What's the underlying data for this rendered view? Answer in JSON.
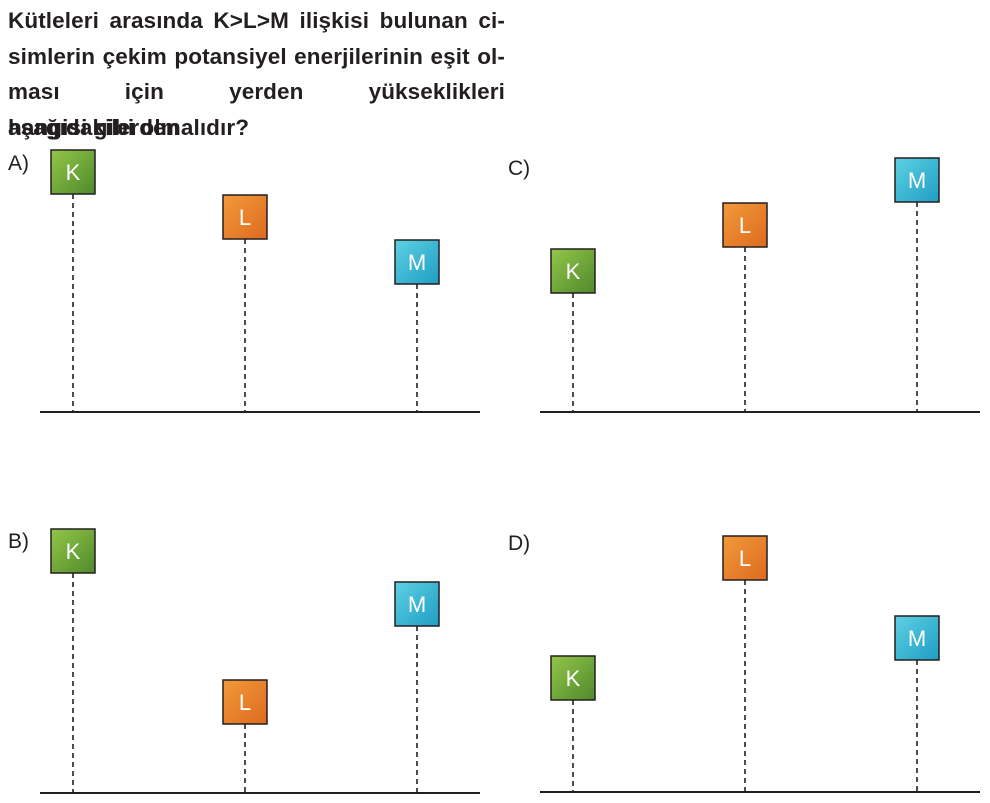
{
  "question": {
    "lines": [
      "Kütleleri arasında K>L>M ilişkisi bulunan ci-",
      "simlerin çekim potansiyel enerjilerinin eşit ol-",
      "ması için yerden yükseklikleri aşağıdakilerden",
      "hangisi gibi olmalıdır?"
    ]
  },
  "colors": {
    "K": [
      "#93c648",
      "#4f8a2c"
    ],
    "L": [
      "#f29a3a",
      "#de6a1f"
    ],
    "M": [
      "#5ed1e3",
      "#1f9dc4"
    ],
    "line": "#231f20",
    "box_text": "#ffffff"
  },
  "options": [
    {
      "label": "A)",
      "blocks": [
        {
          "name": "K",
          "height_rank": 1
        },
        {
          "name": "L",
          "height_rank": 2
        },
        {
          "name": "M",
          "height_rank": 3
        }
      ]
    },
    {
      "label": "B)",
      "blocks": [
        {
          "name": "K",
          "height_rank": 1
        },
        {
          "name": "L",
          "height_rank": 3
        },
        {
          "name": "M",
          "height_rank": 2
        }
      ]
    },
    {
      "label": "C)",
      "blocks": [
        {
          "name": "K",
          "height_rank": 3
        },
        {
          "name": "L",
          "height_rank": 2
        },
        {
          "name": "M",
          "height_rank": 1
        }
      ]
    },
    {
      "label": "D)",
      "blocks": [
        {
          "name": "K",
          "height_rank": 3
        },
        {
          "name": "L",
          "height_rank": 1
        },
        {
          "name": "M",
          "height_rank": 2
        }
      ]
    }
  ]
}
